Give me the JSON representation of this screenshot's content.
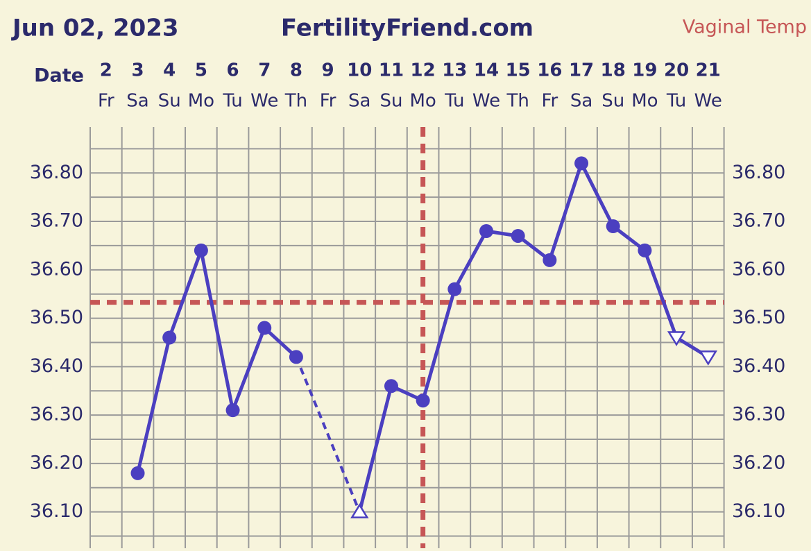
{
  "chart_data": {
    "type": "line",
    "title": "FertilityFriend.com",
    "date": "Jun 02, 2023",
    "subtitle": "Vaginal Temp",
    "x_label": "Date",
    "categories": [
      "2",
      "3",
      "4",
      "5",
      "6",
      "7",
      "8",
      "9",
      "10",
      "11",
      "12",
      "13",
      "14",
      "15",
      "16",
      "17",
      "18",
      "19",
      "20",
      "21"
    ],
    "weekdays": [
      "Fr",
      "Sa",
      "Su",
      "Mo",
      "Tu",
      "We",
      "Th",
      "Fr",
      "Sa",
      "Su",
      "Mo",
      "Tu",
      "We",
      "Th",
      "Fr",
      "Sa",
      "Su",
      "Mo",
      "Tu",
      "We"
    ],
    "series": [
      {
        "name": "Temperature",
        "color": "#4b3fc0",
        "values": [
          null,
          36.18,
          36.46,
          36.64,
          36.31,
          36.48,
          36.42,
          null,
          36.1,
          36.36,
          36.33,
          36.56,
          36.68,
          36.67,
          36.62,
          36.82,
          36.69,
          36.64,
          36.46,
          36.42
        ],
        "markers": [
          null,
          "circle",
          "circle",
          "circle",
          "circle",
          "circle",
          "circle",
          null,
          "triangle-up",
          "circle",
          "circle",
          "circle",
          "circle",
          "circle",
          "circle",
          "circle",
          "circle",
          "circle",
          "triangle-down",
          "triangle-down"
        ]
      }
    ],
    "bridge_gaps": "dashed",
    "ylim": [
      36.025,
      36.895
    ],
    "yticks": [
      {
        "value": 36.1,
        "label": "36.10"
      },
      {
        "value": 36.2,
        "label": "36.20"
      },
      {
        "value": 36.3,
        "label": "36.30"
      },
      {
        "value": 36.4,
        "label": "36.40"
      },
      {
        "value": 36.5,
        "label": "36.50"
      },
      {
        "value": 36.6,
        "label": "36.60"
      },
      {
        "value": 36.7,
        "label": "36.70"
      },
      {
        "value": 36.8,
        "label": "36.80"
      }
    ],
    "grid": true,
    "coverline": 36.533,
    "coverline_color": "#c65656",
    "ovulation": "12"
  }
}
